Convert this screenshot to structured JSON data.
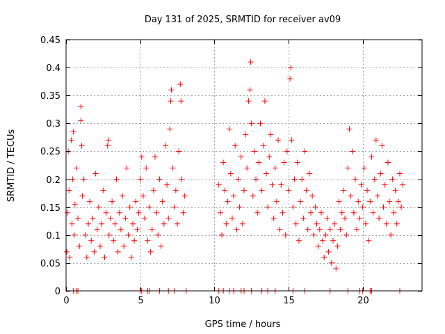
{
  "chart_data": {
    "type": "scatter",
    "title": "Day 131 of 2025, SRMTID for receiver av09",
    "xlabel": "GPS time / hours",
    "ylabel": "SRMTID / TECUs",
    "xlim": [
      0,
      24
    ],
    "ylim": [
      0,
      0.45
    ],
    "xticks": [
      0,
      5,
      10,
      15,
      20
    ],
    "yticks": [
      0,
      0.05,
      0.1,
      0.15,
      0.2,
      0.25,
      0.3,
      0.35,
      0.4,
      0.45
    ],
    "xtick_labels": [
      "0",
      "5",
      "10",
      "15",
      "20"
    ],
    "ytick_labels": [
      "0",
      "0.05",
      "0.1",
      "0.15",
      "0.2",
      "0.25",
      "0.3",
      "0.35",
      "0.4",
      "0.45"
    ],
    "grid": true,
    "marker": "+",
    "color": "#ff0000",
    "data_extent_hours": [
      0,
      22.8
    ],
    "data_gap_hours": [
      8.1,
      10.3
    ],
    "series": [
      {
        "name": "SRMTID",
        "points": [
          [
            0.05,
            0.07
          ],
          [
            0.1,
            0.14
          ],
          [
            0.15,
            0.25
          ],
          [
            0.2,
            0.18
          ],
          [
            0.25,
            0.06
          ],
          [
            0.35,
            0.27
          ],
          [
            0.4,
            0.12
          ],
          [
            0.45,
            0.2
          ],
          [
            0.5,
            0.285
          ],
          [
            0.55,
            0.1
          ],
          [
            0.6,
            0.155
          ],
          [
            0.7,
            0.22
          ],
          [
            0.8,
            0.13
          ],
          [
            0.9,
            0.08
          ],
          [
            1.0,
            0.305
          ],
          [
            1.0,
            0.33
          ],
          [
            1.05,
            0.26
          ],
          [
            1.1,
            0.17
          ],
          [
            1.2,
            0.2
          ],
          [
            1.3,
            0.1
          ],
          [
            1.4,
            0.06
          ],
          [
            1.5,
            0.12
          ],
          [
            1.6,
            0.16
          ],
          [
            1.7,
            0.09
          ],
          [
            1.8,
            0.13
          ],
          [
            1.9,
            0.07
          ],
          [
            2.0,
            0.21
          ],
          [
            2.1,
            0.11
          ],
          [
            2.2,
            0.15
          ],
          [
            2.3,
            0.08
          ],
          [
            2.4,
            0.12
          ],
          [
            2.5,
            0.18
          ],
          [
            2.6,
            0.06
          ],
          [
            2.7,
            0.14
          ],
          [
            2.8,
            0.26
          ],
          [
            2.85,
            0.27
          ],
          [
            2.9,
            0.1
          ],
          [
            3.0,
            0.13
          ],
          [
            3.1,
            0.16
          ],
          [
            3.2,
            0.09
          ],
          [
            3.3,
            0.12
          ],
          [
            3.4,
            0.2
          ],
          [
            3.5,
            0.07
          ],
          [
            3.6,
            0.14
          ],
          [
            3.7,
            0.11
          ],
          [
            3.8,
            0.17
          ],
          [
            3.9,
            0.08
          ],
          [
            4.0,
            0.13
          ],
          [
            4.1,
            0.22
          ],
          [
            4.2,
            0.1
          ],
          [
            4.3,
            0.15
          ],
          [
            4.4,
            0.06
          ],
          [
            4.5,
            0.12
          ],
          [
            4.6,
            0.09
          ],
          [
            4.7,
            0.16
          ],
          [
            4.8,
            0.11
          ],
          [
            4.9,
            0.14
          ],
          [
            5.0,
            0.2
          ],
          [
            5.1,
            0.24
          ],
          [
            5.2,
            0.17
          ],
          [
            5.3,
            0.13
          ],
          [
            5.4,
            0.22
          ],
          [
            5.5,
            0.09
          ],
          [
            5.6,
            0.15
          ],
          [
            5.7,
            0.07
          ],
          [
            5.8,
            0.11
          ],
          [
            5.9,
            0.18
          ],
          [
            6.0,
            0.24
          ],
          [
            6.1,
            0.14
          ],
          [
            6.2,
            0.1
          ],
          [
            6.3,
            0.2
          ],
          [
            6.4,
            0.08
          ],
          [
            6.5,
            0.16
          ],
          [
            6.6,
            0.12
          ],
          [
            6.7,
            0.26
          ],
          [
            6.8,
            0.19
          ],
          [
            6.9,
            0.13
          ],
          [
            7.0,
            0.29
          ],
          [
            7.05,
            0.34
          ],
          [
            7.1,
            0.36
          ],
          [
            7.2,
            0.22
          ],
          [
            7.3,
            0.15
          ],
          [
            7.4,
            0.18
          ],
          [
            7.5,
            0.12
          ],
          [
            7.6,
            0.25
          ],
          [
            7.7,
            0.37
          ],
          [
            7.75,
            0.34
          ],
          [
            7.8,
            0.2
          ],
          [
            7.9,
            0.14
          ],
          [
            8.0,
            0.17
          ],
          [
            10.3,
            0.19
          ],
          [
            10.4,
            0.14
          ],
          [
            10.5,
            0.1
          ],
          [
            10.6,
            0.23
          ],
          [
            10.7,
            0.18
          ],
          [
            10.8,
            0.12
          ],
          [
            10.9,
            0.16
          ],
          [
            11.0,
            0.29
          ],
          [
            11.1,
            0.21
          ],
          [
            11.2,
            0.13
          ],
          [
            11.3,
            0.17
          ],
          [
            11.4,
            0.26
          ],
          [
            11.5,
            0.11
          ],
          [
            11.6,
            0.2
          ],
          [
            11.7,
            0.15
          ],
          [
            11.8,
            0.24
          ],
          [
            11.9,
            0.12
          ],
          [
            12.0,
            0.18
          ],
          [
            12.1,
            0.28
          ],
          [
            12.2,
            0.22
          ],
          [
            12.3,
            0.34
          ],
          [
            12.4,
            0.36
          ],
          [
            12.45,
            0.41
          ],
          [
            12.5,
            0.3
          ],
          [
            12.6,
            0.17
          ],
          [
            12.7,
            0.25
          ],
          [
            12.8,
            0.2
          ],
          [
            12.9,
            0.14
          ],
          [
            13.0,
            0.23
          ],
          [
            13.1,
            0.3
          ],
          [
            13.2,
            0.18
          ],
          [
            13.3,
            0.26
          ],
          [
            13.4,
            0.34
          ],
          [
            13.5,
            0.21
          ],
          [
            13.6,
            0.15
          ],
          [
            13.7,
            0.24
          ],
          [
            13.8,
            0.28
          ],
          [
            13.9,
            0.19
          ],
          [
            14.0,
            0.13
          ],
          [
            14.1,
            0.22
          ],
          [
            14.2,
            0.16
          ],
          [
            14.3,
            0.27
          ],
          [
            14.4,
            0.11
          ],
          [
            14.5,
            0.19
          ],
          [
            14.6,
            0.14
          ],
          [
            14.7,
            0.23
          ],
          [
            14.8,
            0.1
          ],
          [
            14.9,
            0.25
          ],
          [
            15.0,
            0.18
          ],
          [
            15.1,
            0.38
          ],
          [
            15.15,
            0.4
          ],
          [
            15.2,
            0.27
          ],
          [
            15.3,
            0.15
          ],
          [
            15.4,
            0.2
          ],
          [
            15.5,
            0.12
          ],
          [
            15.6,
            0.23
          ],
          [
            15.7,
            0.09
          ],
          [
            15.8,
            0.16
          ],
          [
            15.9,
            0.2
          ],
          [
            16.0,
            0.13
          ],
          [
            16.1,
            0.25
          ],
          [
            16.2,
            0.18
          ],
          [
            16.3,
            0.11
          ],
          [
            16.4,
            0.21
          ],
          [
            16.5,
            0.14
          ],
          [
            16.6,
            0.17
          ],
          [
            16.7,
            0.1
          ],
          [
            16.8,
            0.15
          ],
          [
            16.9,
            0.12
          ],
          [
            17.0,
            0.08
          ],
          [
            17.1,
            0.11
          ],
          [
            17.2,
            0.14
          ],
          [
            17.3,
            0.09
          ],
          [
            17.4,
            0.06
          ],
          [
            17.5,
            0.1
          ],
          [
            17.6,
            0.13
          ],
          [
            17.7,
            0.07
          ],
          [
            17.8,
            0.11
          ],
          [
            17.9,
            0.05
          ],
          [
            18.0,
            0.09
          ],
          [
            18.1,
            0.12
          ],
          [
            18.2,
            0.04
          ],
          [
            18.3,
            0.08
          ],
          [
            18.4,
            0.16
          ],
          [
            18.5,
            0.11
          ],
          [
            18.6,
            0.14
          ],
          [
            18.7,
            0.18
          ],
          [
            18.8,
            0.13
          ],
          [
            18.9,
            0.1
          ],
          [
            19.0,
            0.22
          ],
          [
            19.1,
            0.29
          ],
          [
            19.2,
            0.17
          ],
          [
            19.3,
            0.25
          ],
          [
            19.4,
            0.14
          ],
          [
            19.5,
            0.2
          ],
          [
            19.6,
            0.11
          ],
          [
            19.7,
            0.16
          ],
          [
            19.8,
            0.13
          ],
          [
            19.9,
            0.19
          ],
          [
            20.0,
            0.15
          ],
          [
            20.1,
            0.22
          ],
          [
            20.2,
            0.12
          ],
          [
            20.3,
            0.18
          ],
          [
            20.4,
            0.09
          ],
          [
            20.5,
            0.16
          ],
          [
            20.6,
            0.24
          ],
          [
            20.7,
            0.14
          ],
          [
            20.8,
            0.2
          ],
          [
            20.9,
            0.27
          ],
          [
            21.0,
            0.17
          ],
          [
            21.1,
            0.13
          ],
          [
            21.2,
            0.21
          ],
          [
            21.3,
            0.26
          ],
          [
            21.4,
            0.15
          ],
          [
            21.5,
            0.19
          ],
          [
            21.6,
            0.12
          ],
          [
            21.7,
            0.23
          ],
          [
            21.8,
            0.16
          ],
          [
            21.9,
            0.1
          ],
          [
            22.0,
            0.2
          ],
          [
            22.1,
            0.14
          ],
          [
            22.2,
            0.18
          ],
          [
            22.3,
            0.12
          ],
          [
            22.4,
            0.16
          ],
          [
            22.5,
            0.21
          ],
          [
            22.6,
            0.15
          ],
          [
            22.7,
            0.19
          ]
        ]
      },
      {
        "name": "zero-level",
        "points": [
          [
            0.5,
            0
          ],
          [
            0.7,
            0
          ],
          [
            0.8,
            0
          ],
          [
            5.0,
            0
          ],
          [
            5.1,
            0
          ],
          [
            5.5,
            0
          ],
          [
            5.6,
            0
          ],
          [
            6.3,
            0
          ],
          [
            6.9,
            0
          ],
          [
            7.3,
            0
          ],
          [
            8.1,
            0
          ],
          [
            10.3,
            0
          ],
          [
            10.6,
            0
          ],
          [
            11.0,
            0
          ],
          [
            11.3,
            0
          ],
          [
            11.8,
            0
          ],
          [
            12.0,
            0
          ],
          [
            12.5,
            0
          ],
          [
            13.2,
            0
          ],
          [
            13.6,
            0
          ],
          [
            14.1,
            0
          ],
          [
            15.3,
            0
          ],
          [
            16.1,
            0
          ],
          [
            17.8,
            0
          ],
          [
            19.0,
            0
          ],
          [
            19.8,
            0
          ],
          [
            20.0,
            0
          ],
          [
            20.5,
            0
          ],
          [
            20.6,
            0
          ],
          [
            22.5,
            0
          ]
        ]
      }
    ]
  }
}
